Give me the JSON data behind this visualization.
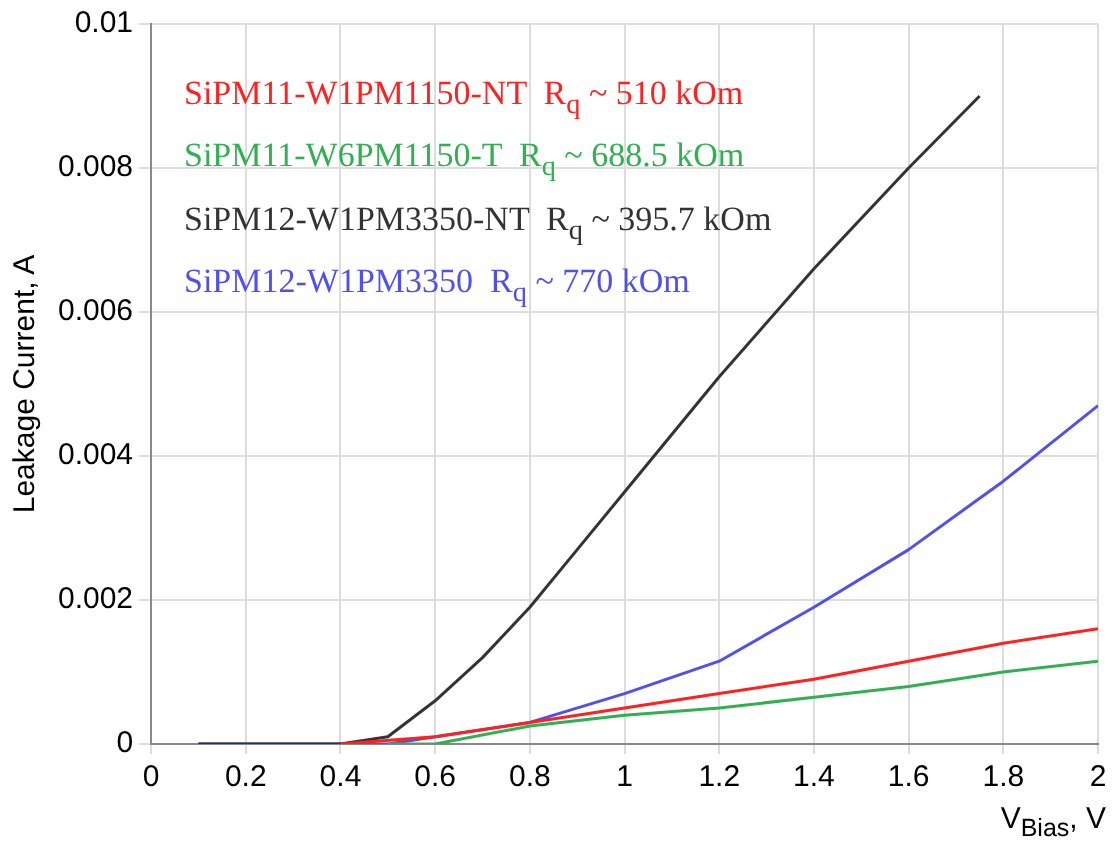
{
  "chart_data": {
    "type": "line",
    "xlabel": "V$_{Bias}$, V",
    "ylabel": "Leakage Current, A",
    "xlim": [
      0,
      2
    ],
    "xticks": [
      0,
      0.2,
      0.4,
      0.6,
      0.8,
      1,
      1.2,
      1.4,
      1.6,
      1.8,
      2
    ],
    "ylim": [
      0,
      0.01
    ],
    "yticks": [
      0,
      0.002,
      0.004,
      0.006,
      0.008,
      0.01
    ],
    "grid": true,
    "legend": "top left",
    "marker": "none",
    "line_style": "solid",
    "series": [
      {
        "name": "SiPM11-W1PM1150-NT  R$_{q}$ ~ 510 kOm",
        "color": "#ff2020",
        "x": [
          0.4,
          0.6,
          0.8,
          1,
          1.2,
          1.4,
          1.6,
          1.8,
          2
        ],
        "values": [
          0,
          0.0001,
          0.0003,
          0.0005,
          0.0007,
          0.0009,
          0.00115,
          0.0014,
          0.0016
        ]
      },
      {
        "name": "SiPM11-W6PM1150-T  R$_{q}$ ~ 688.5 kOm",
        "color": "#30b050",
        "x": [
          0.5,
          0.6,
          0.8,
          1,
          1.2,
          1.4,
          1.6,
          1.8,
          2
        ],
        "values": [
          0,
          0,
          0.00025,
          0.0004,
          0.0005,
          0.00065,
          0.0008,
          0.001,
          0.00115
        ]
      },
      {
        "name": "SiPM12-W1PM3350-NT  R$_{q}$ ~ 395.7 kOm",
        "color": "#333333",
        "x": [
          0.1,
          0.4,
          0.5,
          0.6,
          0.7,
          0.8,
          0.9,
          1,
          1.2,
          1.4,
          1.6,
          1.75
        ],
        "values": [
          0,
          0,
          0.0001,
          0.0006,
          0.0012,
          0.0019,
          0.0027,
          0.0035,
          0.0051,
          0.0066,
          0.008,
          0.009
        ]
      },
      {
        "name": "SiPM12-W1PM3350  R$_{q}$ ~ 770 kOm",
        "color": "#5050f0",
        "x": [
          0.1,
          0.5,
          0.8,
          1,
          1.2,
          1.4,
          1.6,
          1.8,
          2
        ],
        "values": [
          0,
          0,
          0.0003,
          0.0007,
          0.00115,
          0.0019,
          0.0027,
          0.00365,
          0.0047
        ]
      }
    ]
  }
}
